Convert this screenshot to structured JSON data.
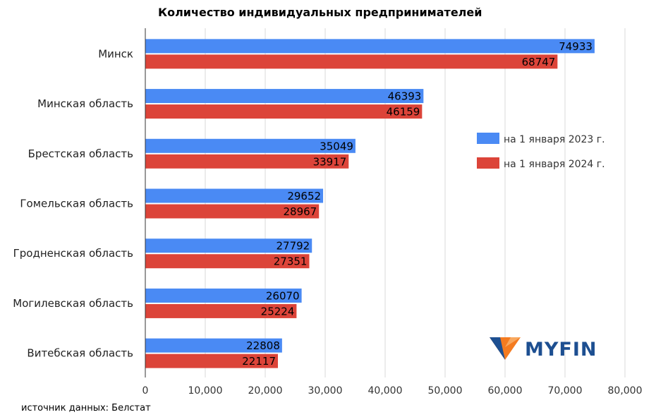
{
  "colors": {
    "series_2023": "#4a8af4",
    "series_2024": "#dc4439",
    "brand_blue": "#1d4f91",
    "brand_orange": "#f47b20"
  },
  "brand": {
    "name": "MYFIN",
    "icon": "myfin-logo-icon"
  },
  "source": "источник данных: Белстат",
  "chart_data": {
    "type": "bar",
    "orientation": "horizontal",
    "title": "Количество индивидуальных предпринимателей",
    "categories": [
      "Минск",
      "Минская область",
      "Брестская область",
      "Гомельская область",
      "Гродненская область",
      "Могилевская область",
      "Витебская область"
    ],
    "series": [
      {
        "name": "на 1 января 2023 г.",
        "color": "#4a8af4",
        "values": [
          74933,
          46393,
          35049,
          29652,
          27792,
          26070,
          22808
        ]
      },
      {
        "name": "на 1 января 2024 г.",
        "color": "#dc4439",
        "values": [
          68747,
          46159,
          33917,
          28967,
          27351,
          25224,
          22117
        ]
      }
    ],
    "xlim": [
      0,
      80000
    ],
    "ticks": [
      "0",
      "10,000",
      "20,000",
      "30,000",
      "40,000",
      "50,000",
      "60,000",
      "70,000",
      "80,000"
    ],
    "tick_values": [
      0,
      10000,
      20000,
      30000,
      40000,
      50000,
      60000,
      70000,
      80000
    ],
    "grid": true,
    "legend_position": "right",
    "xlabel": "",
    "ylabel": ""
  }
}
